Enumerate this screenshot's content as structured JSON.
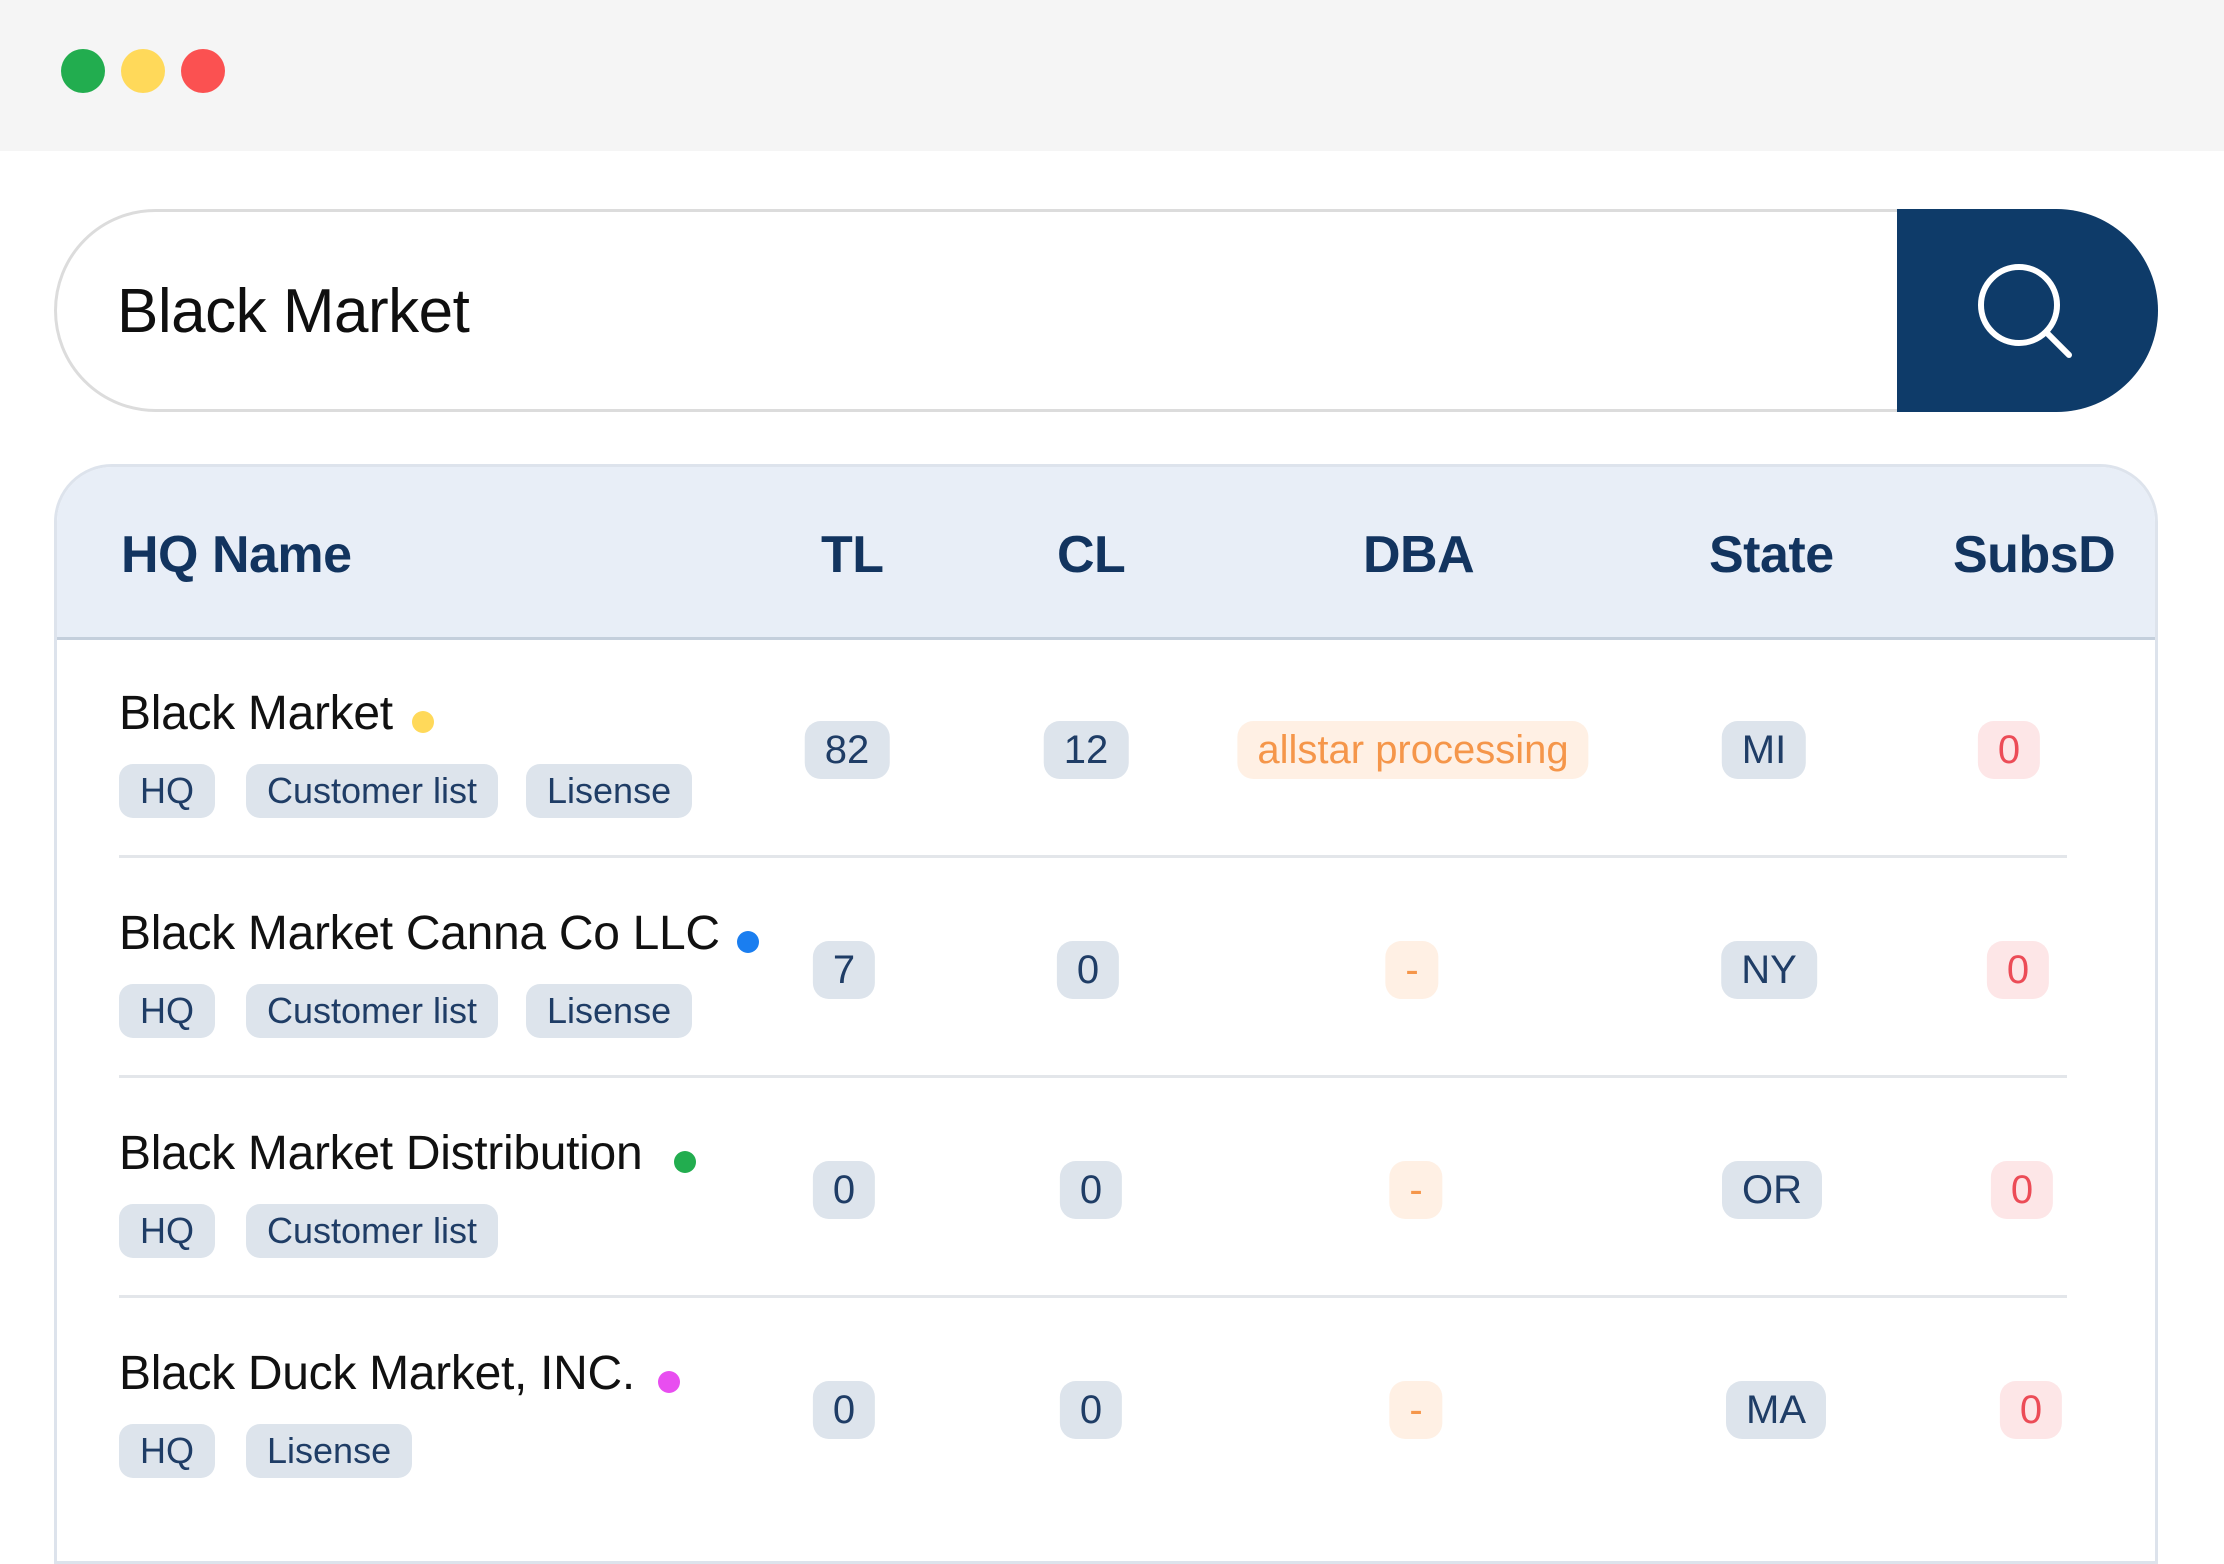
{
  "window": {
    "controls": [
      {
        "name": "green",
        "color": "#22ad4f"
      },
      {
        "name": "yellow",
        "color": "#ffd95a"
      },
      {
        "name": "red",
        "color": "#fb5151"
      }
    ]
  },
  "search": {
    "value": "Black Market",
    "button_icon": "search-icon"
  },
  "table": {
    "columns": [
      "HQ Name",
      "TL",
      "CL",
      "DBA",
      "State",
      "SubsD"
    ],
    "rows": [
      {
        "name": "Black Market",
        "status_color": "#ffd95a",
        "tags": [
          "HQ",
          "Customer list",
          "Lisense"
        ],
        "tl": "82",
        "cl": "12",
        "dba": "allstar processing",
        "state": "MI",
        "subsd": "0"
      },
      {
        "name": "Black Market Canna Co LLC",
        "status_color": "#1a7ef0",
        "tags": [
          "HQ",
          "Customer list",
          "Lisense"
        ],
        "tl": "7",
        "cl": "0",
        "dba": "-",
        "state": "NY",
        "subsd": "0"
      },
      {
        "name": "Black Market Distribution",
        "status_color": "#22ad4f",
        "tags": [
          "HQ",
          "Customer list"
        ],
        "tl": "0",
        "cl": "0",
        "dba": "-",
        "state": "OR",
        "subsd": "0"
      },
      {
        "name": "Black Duck Market, INC.",
        "status_color": "#e84ef0",
        "tags": [
          "HQ",
          "Lisense"
        ],
        "tl": "0",
        "cl": "0",
        "dba": "-",
        "state": "MA",
        "subsd": "0"
      }
    ]
  }
}
